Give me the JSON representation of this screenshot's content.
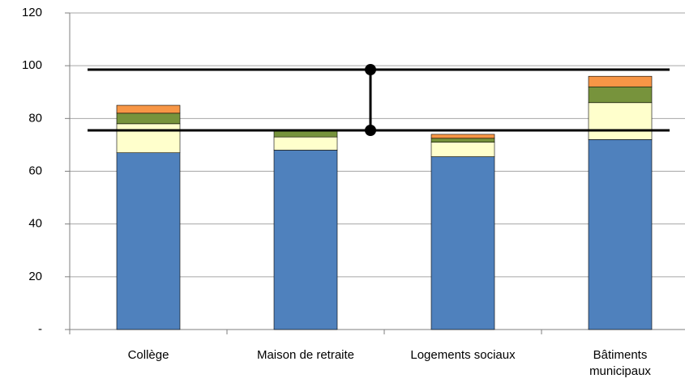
{
  "chart_data": {
    "type": "stacked_bar",
    "categories": [
      "Collège",
      "Maison de retraite",
      "Logements sociaux",
      "Bâtiments municipaux"
    ],
    "series": [
      {
        "color": "#4f81bd",
        "values": [
          67,
          68,
          65.5,
          72
        ]
      },
      {
        "color": "#ffffcc",
        "values": [
          11,
          5,
          5.5,
          14
        ]
      },
      {
        "color": "#77933c",
        "values": [
          4,
          2.5,
          1.5,
          6
        ]
      },
      {
        "color": "#f79646",
        "values": [
          3,
          0,
          1.5,
          4
        ]
      }
    ],
    "reference_lines": [
      98.5,
      75.5
    ],
    "ylim": [
      0,
      120
    ],
    "yticks": [
      {
        "value": 0,
        "label": "-"
      },
      20,
      40,
      60,
      80,
      100,
      120
    ],
    "grid": true
  }
}
